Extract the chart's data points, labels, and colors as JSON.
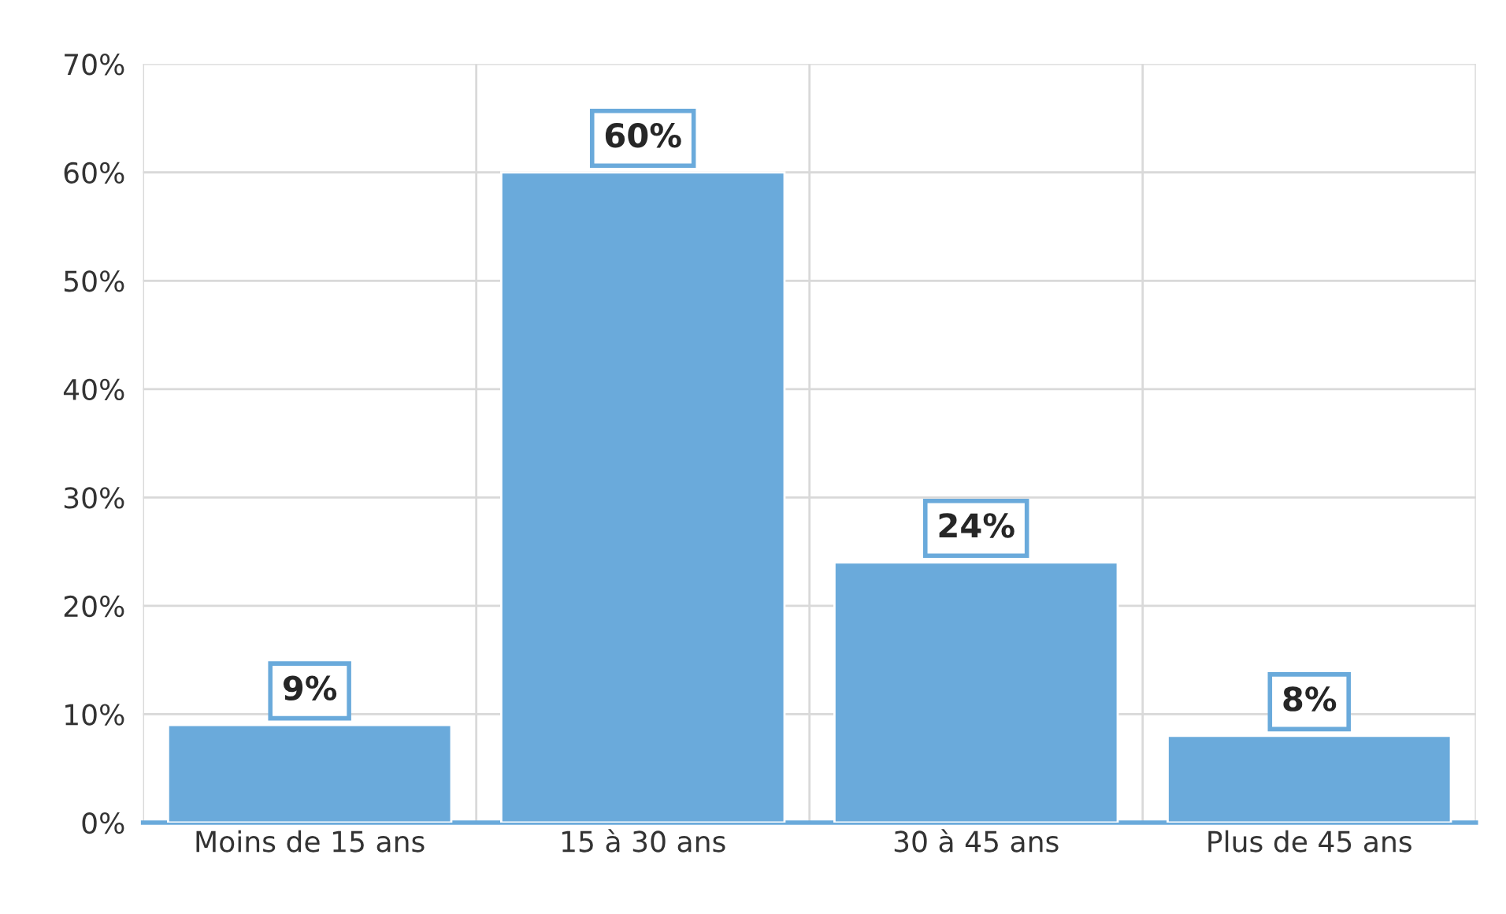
{
  "chart_data": {
    "type": "bar",
    "categories": [
      "Moins de 15 ans",
      "15 à 30 ans",
      "30 à 45 ans",
      "Plus de 45 ans"
    ],
    "values": [
      9,
      60,
      24,
      8
    ],
    "value_labels": [
      "9%",
      "60%",
      "24%",
      "8%"
    ],
    "color": "#6aaadb",
    "ylim": [
      0,
      70
    ],
    "yticks": [
      {
        "value": 0,
        "label": "0%"
      },
      {
        "value": 10,
        "label": "10%"
      },
      {
        "value": 20,
        "label": "20%"
      },
      {
        "value": 30,
        "label": "30%"
      },
      {
        "value": 40,
        "label": "40%"
      },
      {
        "value": 50,
        "label": "50%"
      },
      {
        "value": 60,
        "label": "60%"
      },
      {
        "value": 70,
        "label": "70%"
      }
    ],
    "grid": true,
    "legend": false
  }
}
